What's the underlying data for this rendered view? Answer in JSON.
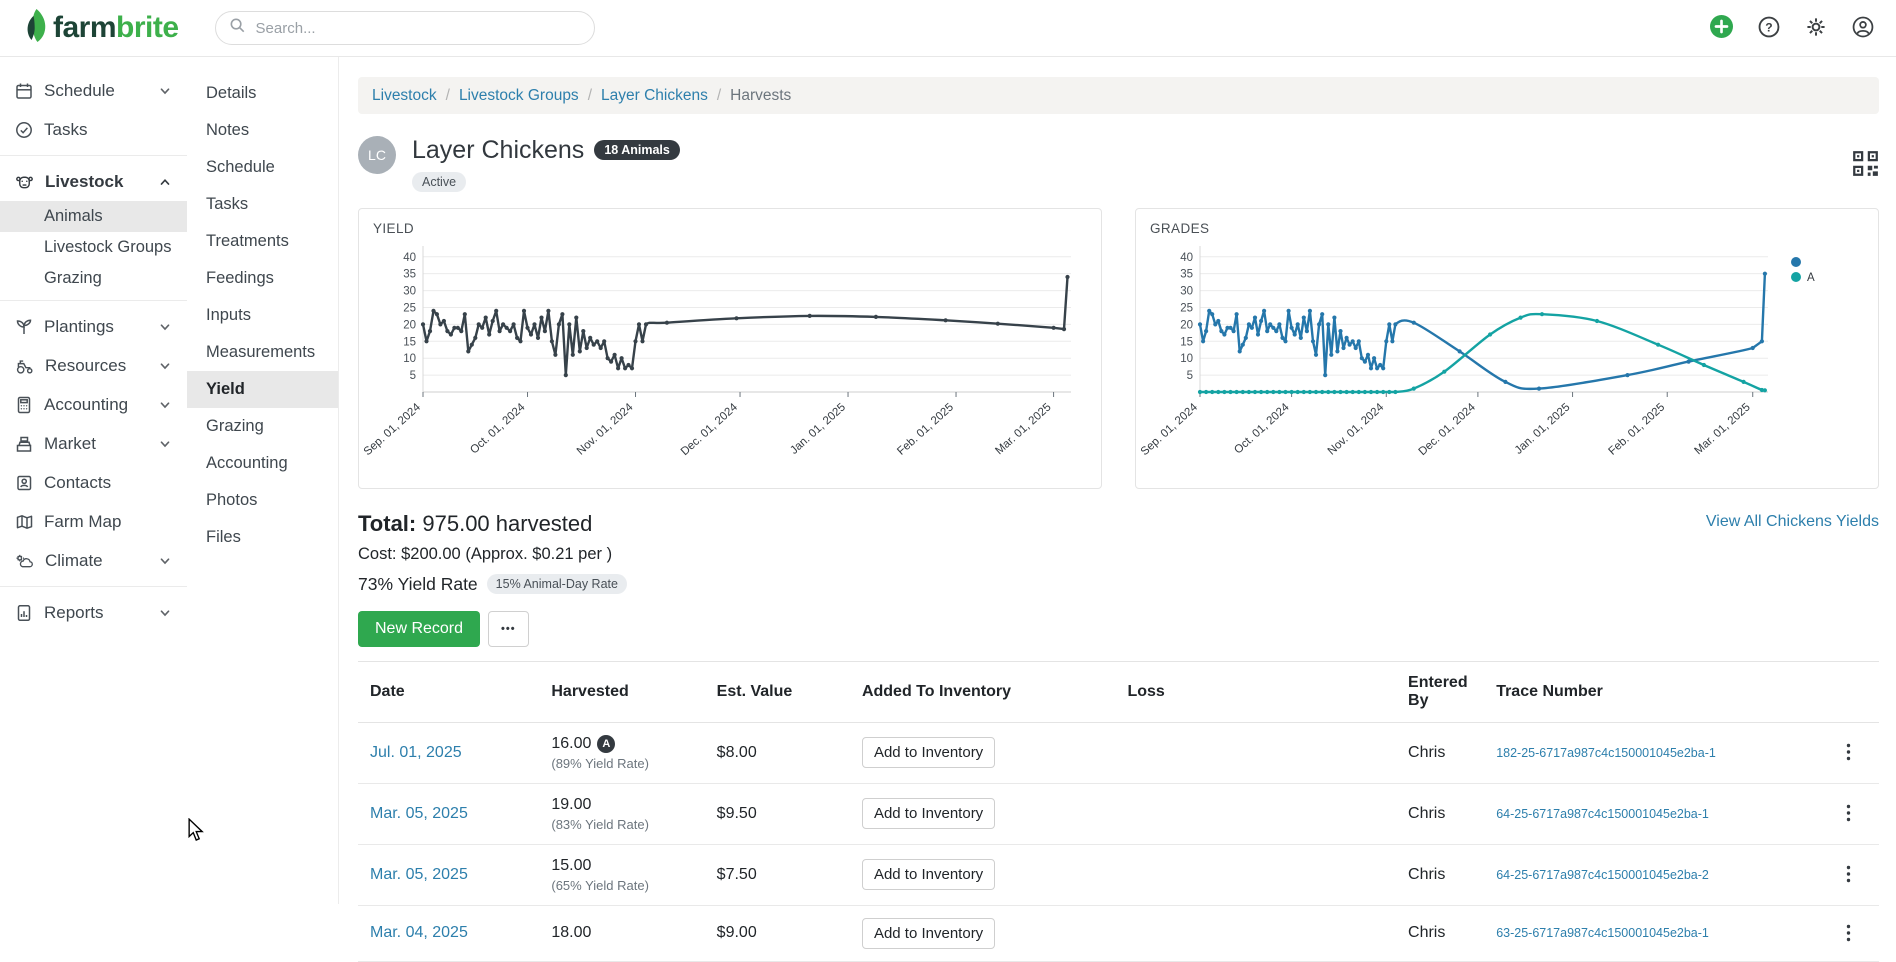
{
  "navbar": {
    "logo_farm": "farm",
    "logo_brite": "brite",
    "search_placeholder": "Search...",
    "actions": [
      {
        "icon": "plus-circle",
        "color": "#2fa84f"
      },
      {
        "icon": "help-circle"
      },
      {
        "icon": "gear"
      },
      {
        "icon": "user-circle"
      }
    ]
  },
  "sidebar": {
    "items": [
      {
        "label": "Schedule",
        "icon": "calendar",
        "chevron": "down"
      },
      {
        "label": "Tasks",
        "icon": "check-circle"
      },
      {
        "divider": true
      },
      {
        "label": "Livestock",
        "icon": "cow",
        "chevron": "up",
        "bold": true,
        "children": [
          {
            "label": "Animals",
            "active": true
          },
          {
            "label": "Livestock Groups"
          },
          {
            "label": "Grazing"
          }
        ]
      },
      {
        "divider": true
      },
      {
        "label": "Plantings",
        "icon": "sprout",
        "chevron": "down"
      },
      {
        "label": "Resources",
        "icon": "tractor",
        "chevron": "down"
      },
      {
        "label": "Accounting",
        "icon": "calculator",
        "chevron": "down"
      },
      {
        "label": "Market",
        "icon": "register",
        "chevron": "down"
      },
      {
        "label": "Contacts",
        "icon": "contact-card"
      },
      {
        "label": "Farm Map",
        "icon": "map"
      },
      {
        "label": "Climate",
        "icon": "climate",
        "chevron": "down"
      },
      {
        "divider": true
      },
      {
        "label": "Reports",
        "icon": "report",
        "chevron": "down"
      }
    ]
  },
  "subnav": {
    "active": "Yield",
    "items": [
      "Details",
      "Notes",
      "Schedule",
      "Tasks",
      "Treatments",
      "Feedings",
      "Inputs",
      "Measurements",
      "Yield",
      "Grazing",
      "Accounting",
      "Photos",
      "Files"
    ]
  },
  "breadcrumb": {
    "links": [
      "Livestock",
      "Livestock Groups",
      "Layer Chickens"
    ],
    "current": "Harvests"
  },
  "header": {
    "avatar_initials": "LC",
    "title": "Layer Chickens",
    "count_badge": "18 Animals",
    "status_badge": "Active"
  },
  "summary": {
    "total_label": "Total:",
    "total_value": "975.00 harvested",
    "cost_text": "Cost: $200.00 (Approx. $0.21 per )",
    "yield_rate": "73% Yield Rate",
    "animal_day_rate": "15% Animal-Day Rate",
    "view_all_link": "View All Chickens Yields"
  },
  "actions": {
    "new_record": "New Record",
    "more": "•••"
  },
  "table": {
    "headers": [
      "Date",
      "Harvested",
      "Est. Value",
      "Added To Inventory",
      "Loss",
      "Entered By",
      "Trace Number"
    ],
    "add_button": "Add to Inventory",
    "rows": [
      {
        "date": "Jul. 01, 2025",
        "harvested": "16.00",
        "grade": "A",
        "yield_rate": "(89% Yield Rate)",
        "est_value": "$8.00",
        "loss": "",
        "entered_by": "Chris",
        "trace": "182-25-6717a987c4c150001045e2ba-1"
      },
      {
        "date": "Mar. 05, 2025",
        "harvested": "19.00",
        "grade": "",
        "yield_rate": "(83% Yield Rate)",
        "est_value": "$9.50",
        "loss": "",
        "entered_by": "Chris",
        "trace": "64-25-6717a987c4c150001045e2ba-1"
      },
      {
        "date": "Mar. 05, 2025",
        "harvested": "15.00",
        "grade": "",
        "yield_rate": "(65% Yield Rate)",
        "est_value": "$7.50",
        "loss": "",
        "entered_by": "Chris",
        "trace": "64-25-6717a987c4c150001045e2ba-2"
      },
      {
        "date": "Mar. 04, 2025",
        "harvested": "18.00",
        "grade": "",
        "yield_rate": "",
        "est_value": "$9.00",
        "loss": "",
        "entered_by": "Chris",
        "trace": "63-25-6717a987c4c150001045e2ba-1"
      }
    ]
  },
  "chart_data": [
    {
      "type": "line",
      "title": "YIELD",
      "xlabel": "",
      "ylabel": "",
      "grid": true,
      "legend": [],
      "xlim": [
        0,
        186
      ],
      "ylim": [
        0,
        42
      ],
      "yticks": [
        5,
        10,
        15,
        20,
        25,
        30,
        35,
        40
      ],
      "x_ticks": [
        [
          0,
          "Sep. 01, 2024"
        ],
        [
          30,
          "Oct. 01, 2024"
        ],
        [
          61,
          "Nov. 01, 2024"
        ],
        [
          91,
          "Dec. 01, 2024"
        ],
        [
          122,
          "Jan. 01, 2025"
        ],
        [
          153,
          "Feb. 01, 2025"
        ],
        [
          181,
          "Mar. 01, 2025"
        ]
      ],
      "series": [
        {
          "name": "Yield",
          "color": "#37424a",
          "points": [
            [
              0,
              20
            ],
            [
              1,
              15
            ],
            [
              2,
              18
            ],
            [
              3,
              24
            ],
            [
              4,
              23
            ],
            [
              5,
              20
            ],
            [
              6,
              21
            ],
            [
              7,
              18
            ],
            [
              8,
              17
            ],
            [
              9,
              19
            ],
            [
              10,
              19
            ],
            [
              11,
              18
            ],
            [
              12,
              23
            ],
            [
              13,
              12
            ],
            [
              14,
              14
            ],
            [
              15,
              16
            ],
            [
              16,
              20
            ],
            [
              17,
              19
            ],
            [
              18,
              22
            ],
            [
              19,
              17
            ],
            [
              20,
              21
            ],
            [
              21,
              24
            ],
            [
              22,
              18
            ],
            [
              23,
              20
            ],
            [
              24,
              19
            ],
            [
              25,
              18
            ],
            [
              26,
              20
            ],
            [
              27,
              16
            ],
            [
              28,
              15
            ],
            [
              29,
              24
            ],
            [
              30,
              19
            ],
            [
              31,
              17
            ],
            [
              32,
              20
            ],
            [
              33,
              16
            ],
            [
              34,
              22
            ],
            [
              35,
              18
            ],
            [
              36,
              24
            ],
            [
              37,
              15
            ],
            [
              38,
              11
            ],
            [
              39,
              20
            ],
            [
              40,
              23
            ],
            [
              41,
              5
            ],
            [
              42,
              20
            ],
            [
              43,
              11
            ],
            [
              44,
              22
            ],
            [
              45,
              12
            ],
            [
              46,
              18
            ],
            [
              47,
              13
            ],
            [
              48,
              16
            ],
            [
              49,
              14
            ],
            [
              50,
              15
            ],
            [
              51,
              13
            ],
            [
              52,
              15
            ],
            [
              53,
              10
            ],
            [
              54,
              9
            ],
            [
              55,
              11
            ],
            [
              56,
              7
            ],
            [
              57,
              10
            ],
            [
              58,
              7
            ],
            [
              59,
              8
            ],
            [
              60,
              7
            ],
            [
              61,
              15
            ],
            [
              62,
              20
            ],
            [
              63,
              15
            ],
            [
              64,
              20
            ],
            [
              70,
              20.5
            ],
            [
              90,
              21.8
            ],
            [
              111,
              22.5
            ],
            [
              130,
              22.2
            ],
            [
              150,
              21.2
            ],
            [
              165,
              20.2
            ],
            [
              181,
              19
            ],
            [
              184,
              18.6
            ],
            [
              185,
              34
            ]
          ]
        }
      ]
    },
    {
      "type": "line",
      "title": "GRADES",
      "xlabel": "",
      "ylabel": "",
      "grid": true,
      "legend_position": "right",
      "legend": [
        {
          "label": "",
          "color": "#2577ab"
        },
        {
          "label": "A",
          "color": "#14a3a3"
        }
      ],
      "xlim": [
        0,
        186
      ],
      "ylim": [
        0,
        42
      ],
      "yticks": [
        5,
        10,
        15,
        20,
        25,
        30,
        35,
        40
      ],
      "x_ticks": [
        [
          0,
          "Sep. 01, 2024"
        ],
        [
          30,
          "Oct. 01, 2024"
        ],
        [
          61,
          "Nov. 01, 2024"
        ],
        [
          91,
          "Dec. 01, 2024"
        ],
        [
          122,
          "Jan. 01, 2025"
        ],
        [
          153,
          "Feb. 01, 2025"
        ],
        [
          181,
          "Mar. 01, 2025"
        ]
      ],
      "series": [
        {
          "name": "",
          "color": "#2577ab",
          "points": [
            [
              0,
              20
            ],
            [
              1,
              15
            ],
            [
              2,
              18
            ],
            [
              3,
              24
            ],
            [
              4,
              23
            ],
            [
              5,
              20
            ],
            [
              6,
              21
            ],
            [
              7,
              18
            ],
            [
              8,
              17
            ],
            [
              9,
              19
            ],
            [
              10,
              19
            ],
            [
              11,
              18
            ],
            [
              12,
              23
            ],
            [
              13,
              12
            ],
            [
              14,
              14
            ],
            [
              15,
              16
            ],
            [
              16,
              20
            ],
            [
              17,
              19
            ],
            [
              18,
              22
            ],
            [
              19,
              17
            ],
            [
              20,
              21
            ],
            [
              21,
              24
            ],
            [
              22,
              18
            ],
            [
              23,
              20
            ],
            [
              24,
              19
            ],
            [
              25,
              18
            ],
            [
              26,
              20
            ],
            [
              27,
              16
            ],
            [
              28,
              15
            ],
            [
              29,
              24
            ],
            [
              30,
              19
            ],
            [
              31,
              17
            ],
            [
              32,
              20
            ],
            [
              33,
              16
            ],
            [
              34,
              22
            ],
            [
              35,
              18
            ],
            [
              36,
              24
            ],
            [
              37,
              15
            ],
            [
              38,
              11
            ],
            [
              39,
              20
            ],
            [
              40,
              23
            ],
            [
              41,
              5
            ],
            [
              42,
              20
            ],
            [
              43,
              11
            ],
            [
              44,
              22
            ],
            [
              45,
              12
            ],
            [
              46,
              18
            ],
            [
              47,
              13
            ],
            [
              48,
              16
            ],
            [
              49,
              14
            ],
            [
              50,
              15
            ],
            [
              51,
              13
            ],
            [
              52,
              15
            ],
            [
              53,
              10
            ],
            [
              54,
              9
            ],
            [
              55,
              11
            ],
            [
              56,
              7
            ],
            [
              57,
              10
            ],
            [
              58,
              7
            ],
            [
              59,
              8
            ],
            [
              60,
              7
            ],
            [
              61,
              15
            ],
            [
              62,
              20
            ],
            [
              63,
              15
            ],
            [
              64,
              20
            ],
            [
              70,
              20.5
            ],
            [
              85,
              12
            ],
            [
              100,
              3
            ],
            [
              111,
              1
            ],
            [
              140,
              5
            ],
            [
              160,
              9
            ],
            [
              181,
              13
            ],
            [
              184,
              15
            ],
            [
              185,
              35
            ]
          ]
        },
        {
          "name": "A",
          "color": "#14a3a3",
          "points": [
            [
              0,
              0
            ],
            [
              2,
              0
            ],
            [
              4,
              0
            ],
            [
              6,
              0
            ],
            [
              8,
              0
            ],
            [
              10,
              0
            ],
            [
              12,
              0
            ],
            [
              14,
              0
            ],
            [
              16,
              0
            ],
            [
              18,
              0
            ],
            [
              20,
              0
            ],
            [
              22,
              0
            ],
            [
              24,
              0
            ],
            [
              26,
              0
            ],
            [
              28,
              0
            ],
            [
              30,
              0
            ],
            [
              32,
              0
            ],
            [
              34,
              0
            ],
            [
              36,
              0
            ],
            [
              38,
              0
            ],
            [
              40,
              0
            ],
            [
              42,
              0
            ],
            [
              44,
              0
            ],
            [
              46,
              0
            ],
            [
              48,
              0
            ],
            [
              50,
              0
            ],
            [
              52,
              0
            ],
            [
              54,
              0
            ],
            [
              56,
              0
            ],
            [
              58,
              0
            ],
            [
              60,
              0
            ],
            [
              62,
              0
            ],
            [
              64,
              0
            ],
            [
              70,
              1
            ],
            [
              80,
              6
            ],
            [
              95,
              17
            ],
            [
              105,
              22
            ],
            [
              112,
              23
            ],
            [
              130,
              21
            ],
            [
              150,
              14
            ],
            [
              165,
              8
            ],
            [
              178,
              3
            ],
            [
              184,
              0.6
            ],
            [
              185,
              0.5
            ]
          ]
        }
      ]
    }
  ]
}
